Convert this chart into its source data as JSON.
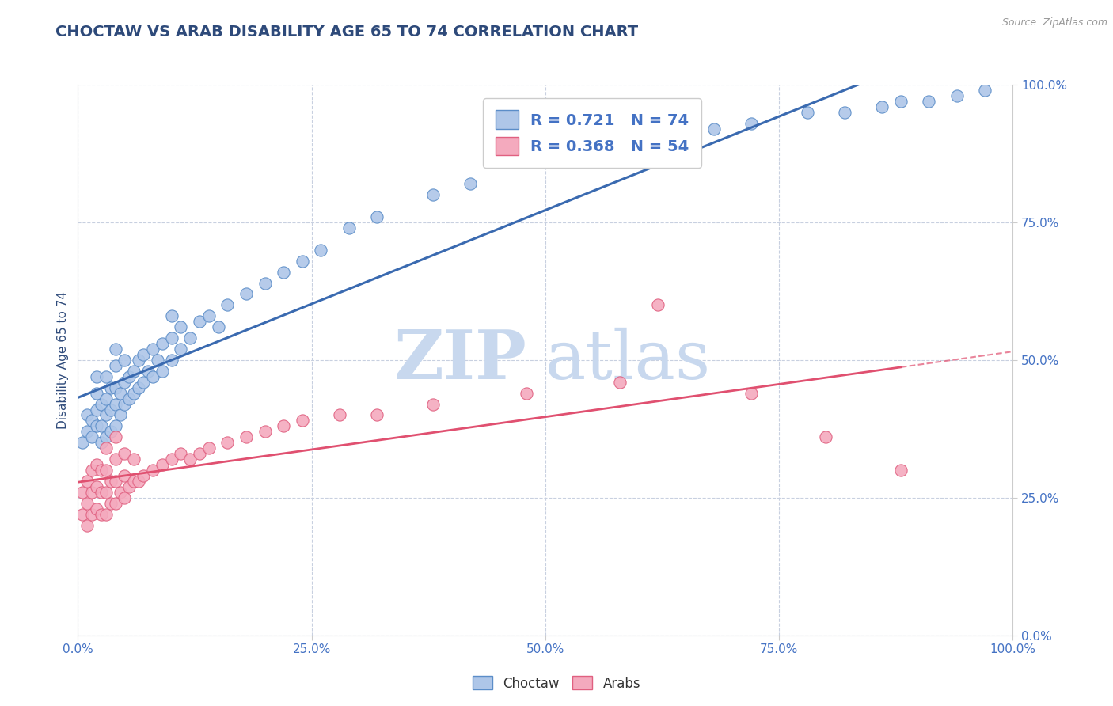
{
  "title": "CHOCTAW VS ARAB DISABILITY AGE 65 TO 74 CORRELATION CHART",
  "source_text": "Source: ZipAtlas.com",
  "ylabel": "Disability Age 65 to 74",
  "xlim": [
    0,
    1.0
  ],
  "ylim": [
    0,
    1.0
  ],
  "xticks": [
    0.0,
    0.25,
    0.5,
    0.75,
    1.0
  ],
  "yticks": [
    0.0,
    0.25,
    0.5,
    0.75,
    1.0
  ],
  "xticklabels": [
    "0.0%",
    "25.0%",
    "50.0%",
    "75.0%",
    "100.0%"
  ],
  "yticklabels": [
    "0.0%",
    "25.0%",
    "50.0%",
    "75.0%",
    "100.0%"
  ],
  "choctaw_color": "#aec6e8",
  "arab_color": "#f4aabe",
  "choctaw_edge_color": "#5b8dc8",
  "arab_edge_color": "#e06080",
  "choctaw_line_color": "#3a6ab0",
  "arab_line_color": "#e05070",
  "R_choctaw": 0.721,
  "N_choctaw": 74,
  "R_arab": 0.368,
  "N_arab": 54,
  "title_color": "#2E4A7A",
  "axis_label_color": "#2E4A7A",
  "tick_label_color": "#4472c4",
  "watermark_zip": "ZIP",
  "watermark_atlas": "atlas",
  "watermark_color_zip": "#c8d8ee",
  "watermark_color_atlas": "#c8d8ee",
  "background_color": "#ffffff",
  "grid_color": "#c8d0e0",
  "title_fontsize": 14,
  "axis_label_fontsize": 11,
  "tick_fontsize": 11,
  "choctaw_x": [
    0.005,
    0.01,
    0.01,
    0.015,
    0.015,
    0.02,
    0.02,
    0.02,
    0.02,
    0.025,
    0.025,
    0.025,
    0.03,
    0.03,
    0.03,
    0.03,
    0.035,
    0.035,
    0.035,
    0.04,
    0.04,
    0.04,
    0.04,
    0.04,
    0.045,
    0.045,
    0.05,
    0.05,
    0.05,
    0.055,
    0.055,
    0.06,
    0.06,
    0.065,
    0.065,
    0.07,
    0.07,
    0.075,
    0.08,
    0.08,
    0.085,
    0.09,
    0.09,
    0.1,
    0.1,
    0.1,
    0.11,
    0.11,
    0.12,
    0.13,
    0.14,
    0.15,
    0.16,
    0.18,
    0.2,
    0.22,
    0.24,
    0.26,
    0.29,
    0.32,
    0.38,
    0.42,
    0.48,
    0.55,
    0.62,
    0.68,
    0.72,
    0.78,
    0.82,
    0.86,
    0.88,
    0.91,
    0.94,
    0.97
  ],
  "choctaw_y": [
    0.35,
    0.37,
    0.4,
    0.36,
    0.39,
    0.38,
    0.41,
    0.44,
    0.47,
    0.35,
    0.38,
    0.42,
    0.36,
    0.4,
    0.43,
    0.47,
    0.37,
    0.41,
    0.45,
    0.38,
    0.42,
    0.45,
    0.49,
    0.52,
    0.4,
    0.44,
    0.42,
    0.46,
    0.5,
    0.43,
    0.47,
    0.44,
    0.48,
    0.45,
    0.5,
    0.46,
    0.51,
    0.48,
    0.47,
    0.52,
    0.5,
    0.48,
    0.53,
    0.5,
    0.54,
    0.58,
    0.52,
    0.56,
    0.54,
    0.57,
    0.58,
    0.56,
    0.6,
    0.62,
    0.64,
    0.66,
    0.68,
    0.7,
    0.74,
    0.76,
    0.8,
    0.82,
    0.86,
    0.88,
    0.9,
    0.92,
    0.93,
    0.95,
    0.95,
    0.96,
    0.97,
    0.97,
    0.98,
    0.99
  ],
  "arab_x": [
    0.005,
    0.005,
    0.01,
    0.01,
    0.01,
    0.015,
    0.015,
    0.015,
    0.02,
    0.02,
    0.02,
    0.025,
    0.025,
    0.025,
    0.03,
    0.03,
    0.03,
    0.03,
    0.035,
    0.035,
    0.04,
    0.04,
    0.04,
    0.04,
    0.045,
    0.05,
    0.05,
    0.05,
    0.055,
    0.06,
    0.06,
    0.065,
    0.07,
    0.08,
    0.09,
    0.1,
    0.11,
    0.12,
    0.13,
    0.14,
    0.16,
    0.18,
    0.2,
    0.22,
    0.24,
    0.28,
    0.32,
    0.38,
    0.48,
    0.58,
    0.62,
    0.72,
    0.8,
    0.88
  ],
  "arab_y": [
    0.22,
    0.26,
    0.2,
    0.24,
    0.28,
    0.22,
    0.26,
    0.3,
    0.23,
    0.27,
    0.31,
    0.22,
    0.26,
    0.3,
    0.22,
    0.26,
    0.3,
    0.34,
    0.24,
    0.28,
    0.24,
    0.28,
    0.32,
    0.36,
    0.26,
    0.25,
    0.29,
    0.33,
    0.27,
    0.28,
    0.32,
    0.28,
    0.29,
    0.3,
    0.31,
    0.32,
    0.33,
    0.32,
    0.33,
    0.34,
    0.35,
    0.36,
    0.37,
    0.38,
    0.39,
    0.4,
    0.4,
    0.42,
    0.44,
    0.46,
    0.6,
    0.44,
    0.36,
    0.3
  ]
}
